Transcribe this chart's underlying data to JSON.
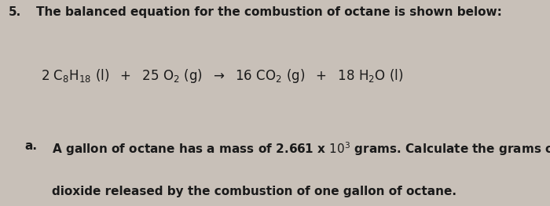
{
  "background_color": "#c8c0b8",
  "question_number": "5.",
  "title_text": "The balanced equation for the combustion of octane is shown below:",
  "sub_label": "a.",
  "sub_text_line1": "A gallon of octane has a mass of 2.661 x 10",
  "sup_3": "3",
  "sub_text_line1b": " grams. Calculate the grams of carbon",
  "sub_text_line2": "dioxide released by the combustion of one gallon of octane.",
  "title_fontsize": 11,
  "eq_fontsize": 12,
  "body_fontsize": 11,
  "text_color": "#1a1a1a"
}
